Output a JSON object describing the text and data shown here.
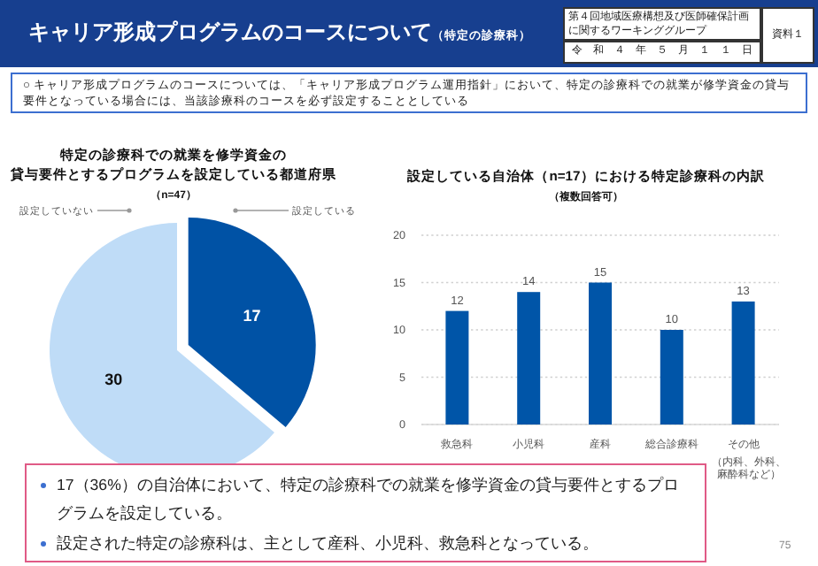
{
  "chart_data": [
    {
      "type": "other",
      "title": "キャリア形成プログラムのコースについて",
      "subtitle": "（特定の診療科）",
      "annotations": [
        "第４回地域医療構想及び医師確保計画に関するワーキンググループ",
        "令　和　４　年　５　月　１　１　日",
        "資料１",
        "○ キャリア形成プログラムのコースについては、「キャリア形成プログラム運用指針」において、特定の診療科での就業が修学資金の貸与要件となっている場合には、当該診療科のコースを必ず設定することとしている",
        "17（36%）の自治体において、特定の診療科での就業を修学資金の貸与要件とするプログラムを設定している。",
        "設定された特定の診療科は、主として産科、小児科、救急科となっている。",
        "75"
      ]
    },
    {
      "type": "pie",
      "title": "特定の診療科での就業を修学資金の貸与要件とするプログラムを設定している都道府県",
      "subtitle": "（n=47）",
      "categories": [
        "設定している",
        "設定していない"
      ],
      "values": [
        17,
        30
      ],
      "colors": [
        "#0052a5",
        "#bfdcf7"
      ],
      "data_labels": true
    },
    {
      "type": "bar",
      "title": "設定している自治体（n=17）における特定診療科の内訳",
      "subtitle": "（複数回答可）",
      "categories": [
        "救急科",
        "小児科",
        "産科",
        "総合診療科",
        "その他"
      ],
      "values": [
        12,
        14,
        15,
        10,
        13
      ],
      "color": "#0055a8",
      "ylim": [
        0,
        20
      ],
      "yticks": [
        0,
        5,
        10,
        15,
        20
      ],
      "grid": "y",
      "data_labels": true,
      "annotations": [
        "（内科、外科、麻酔科など）"
      ]
    }
  ]
}
